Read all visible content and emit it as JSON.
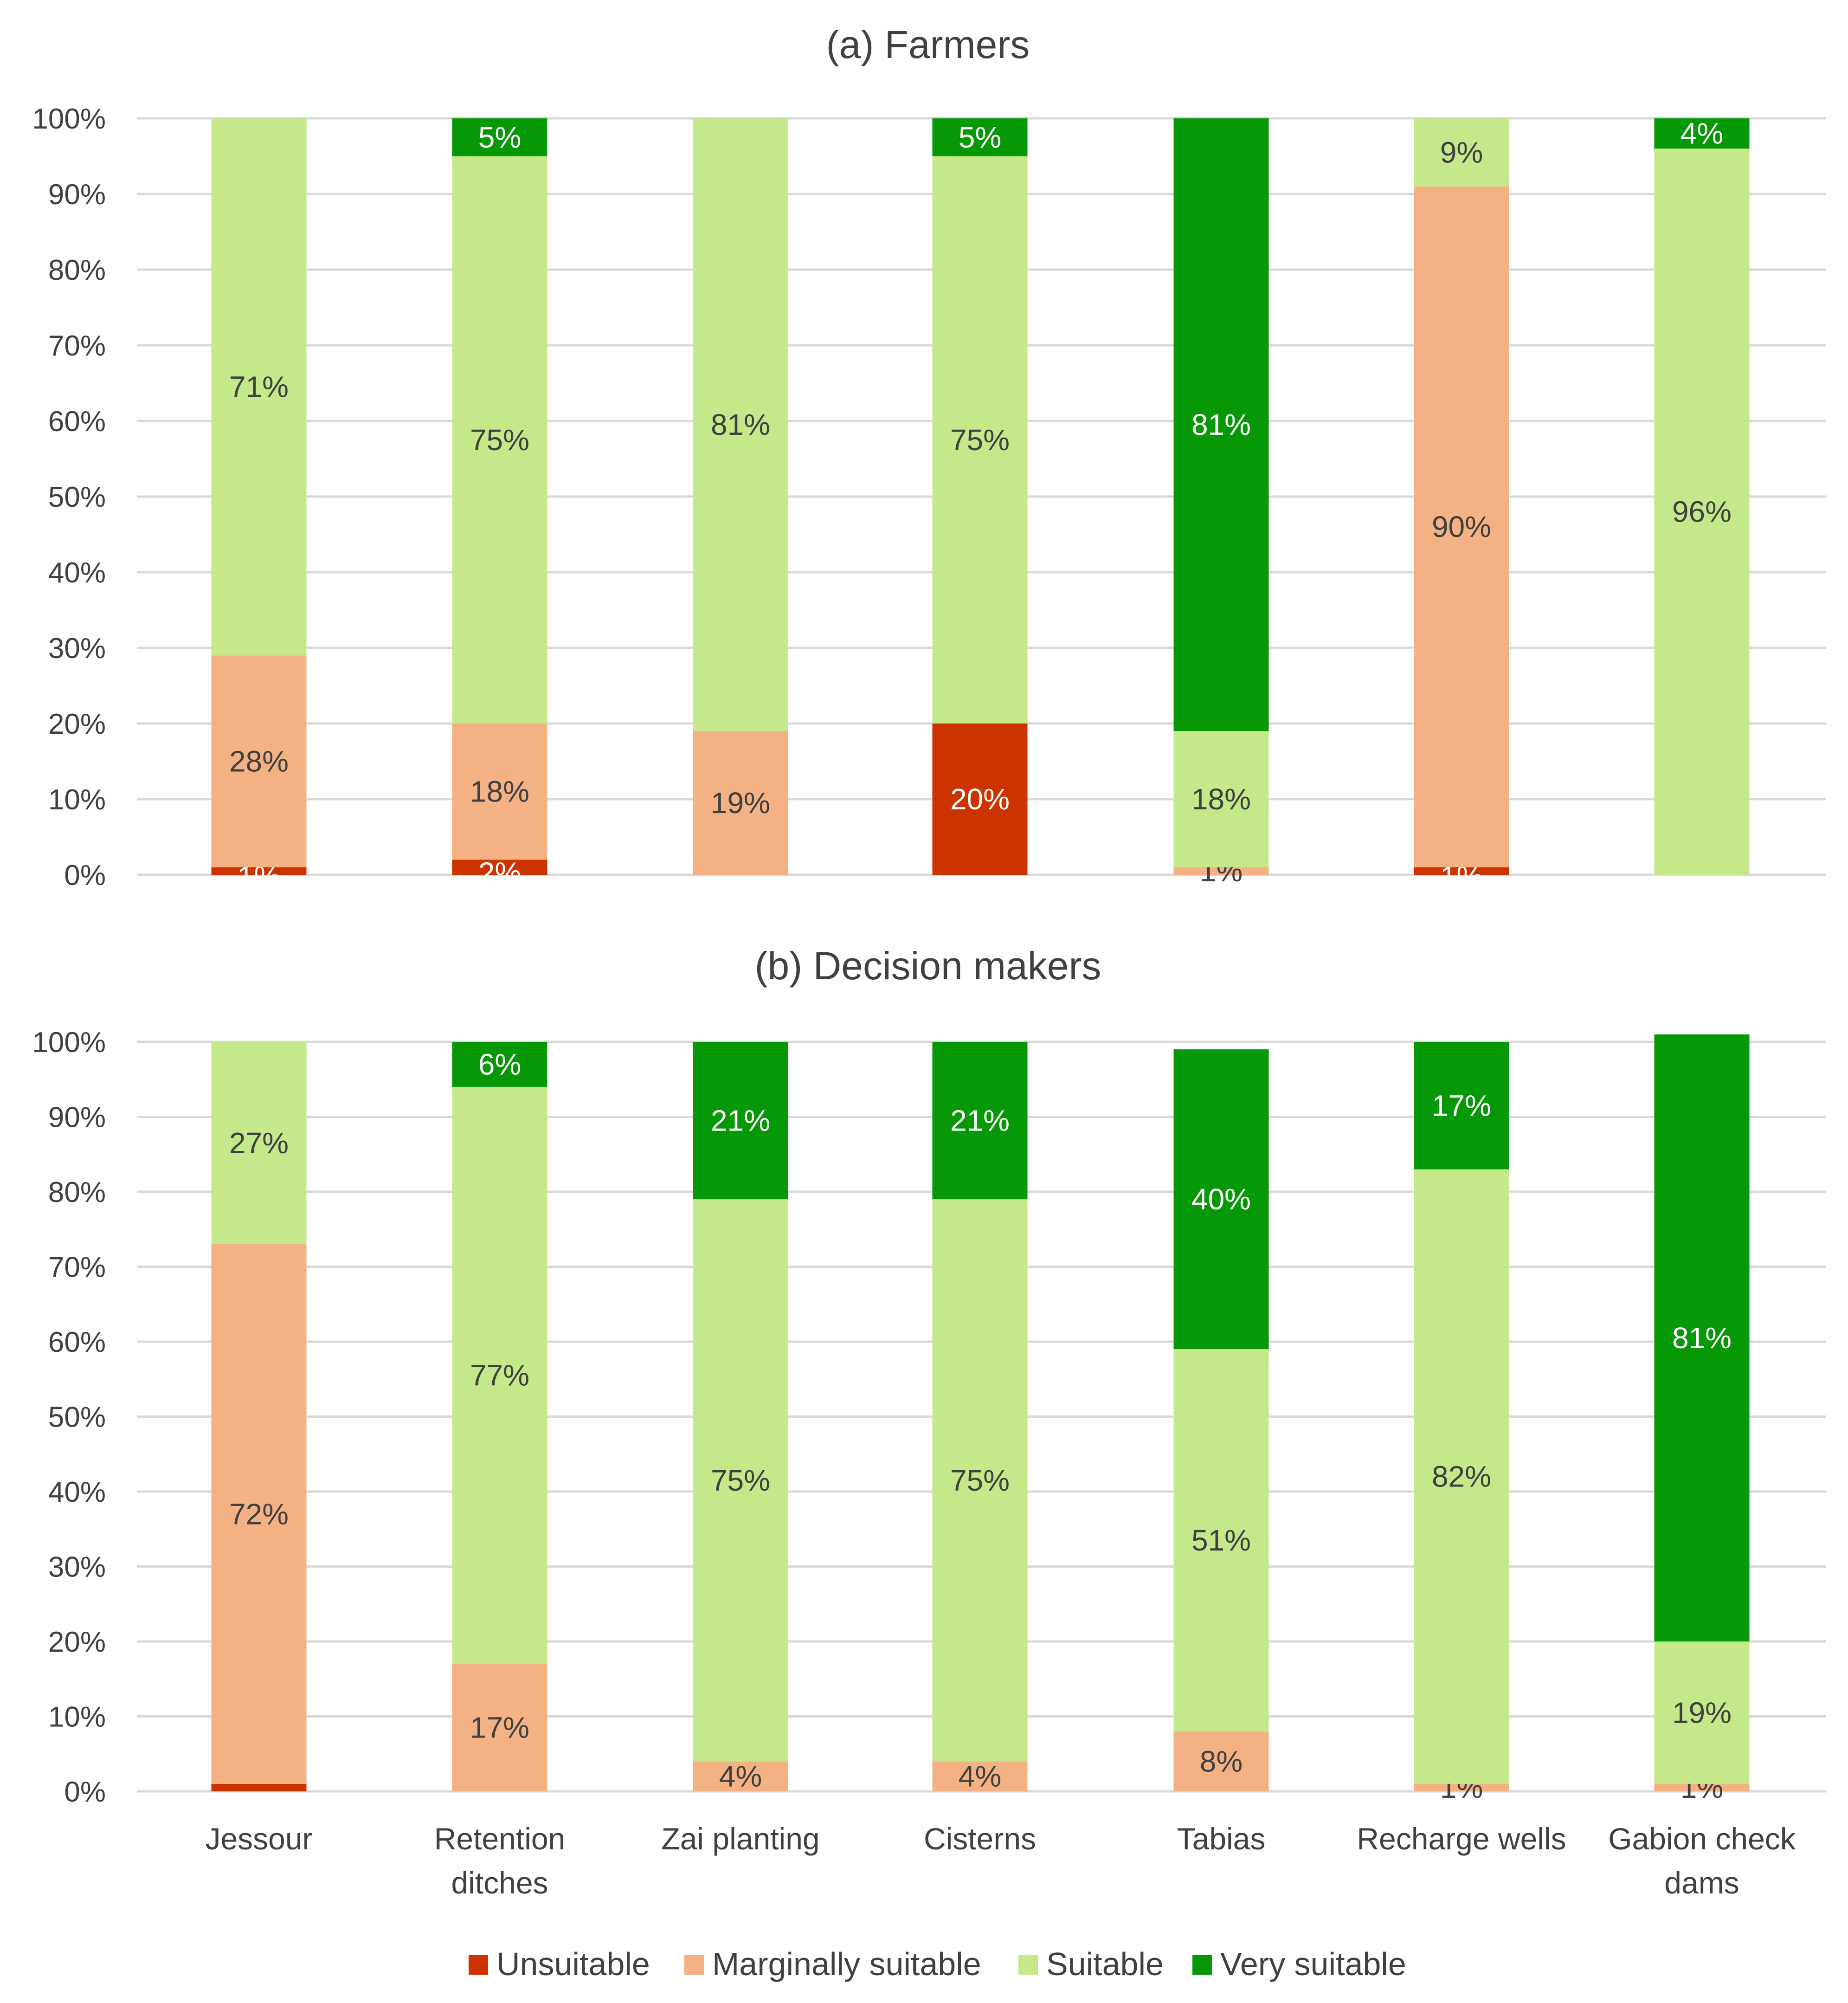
{
  "legend": [
    "Unsuitable",
    "Marginally suitable",
    "Suitable",
    "Very suitable"
  ],
  "colors": {
    "unsuitable": "#cc3300",
    "marginal": "#f4b183",
    "suitable": "#c5e88a",
    "very_suitable": "#069806"
  },
  "chart_data": [
    {
      "type": "bar",
      "stacked": true,
      "title": "(a) Farmers",
      "categories": [
        "Jessour",
        "Retention ditches",
        "Zai planting",
        "Cisterns",
        "Tabias",
        "Recharge wells",
        "Gabion check dams"
      ],
      "ylim": [
        0,
        100
      ],
      "yticks": [
        "0%",
        "10%",
        "20%",
        "30%",
        "40%",
        "50%",
        "60%",
        "70%",
        "80%",
        "90%",
        "100%"
      ],
      "grid": true,
      "series": [
        {
          "name": "Unsuitable",
          "values": [
            1,
            2,
            0,
            20,
            0,
            1,
            0
          ],
          "labels": [
            "1%",
            "2%",
            "",
            "20%",
            "",
            "1%",
            ""
          ]
        },
        {
          "name": "Marginally suitable",
          "values": [
            28,
            18,
            19,
            0,
            1,
            90,
            0
          ],
          "labels": [
            "28%",
            "18%",
            "19%",
            "",
            "1%",
            "90%",
            ""
          ]
        },
        {
          "name": "Suitable",
          "values": [
            71,
            75,
            81,
            75,
            18,
            9,
            96
          ],
          "labels": [
            "71%",
            "75%",
            "81%",
            "75%",
            "18%",
            "9%",
            "96%"
          ]
        },
        {
          "name": "Very suitable",
          "values": [
            0,
            5,
            0,
            5,
            81,
            0,
            4
          ],
          "labels": [
            "",
            "5%",
            "",
            "5%",
            "81%",
            "",
            "4%"
          ]
        }
      ]
    },
    {
      "type": "bar",
      "stacked": true,
      "title": "(b) Decision makers",
      "categories": [
        "Jessour",
        "Retention ditches",
        "Zai planting",
        "Cisterns",
        "Tabias",
        "Recharge wells",
        "Gabion check dams"
      ],
      "category_lines": [
        [
          "Jessour"
        ],
        [
          "Retention",
          "ditches"
        ],
        [
          "Zai planting"
        ],
        [
          "Cisterns"
        ],
        [
          "Tabias"
        ],
        [
          "Recharge wells"
        ],
        [
          "Gabion check",
          "dams"
        ]
      ],
      "ylim": [
        0,
        100
      ],
      "yticks": [
        "0%",
        "10%",
        "20%",
        "30%",
        "40%",
        "50%",
        "60%",
        "70%",
        "80%",
        "90%",
        "100%"
      ],
      "grid": true,
      "legend_position": "bottom",
      "series": [
        {
          "name": "Unsuitable",
          "values": [
            1,
            0,
            0,
            0,
            0,
            0,
            0
          ],
          "labels": [
            "",
            "",
            "",
            "",
            "",
            "",
            ""
          ]
        },
        {
          "name": "Marginally suitable",
          "values": [
            72,
            17,
            4,
            4,
            8,
            1,
            1
          ],
          "labels": [
            "72%",
            "17%",
            "4%",
            "4%",
            "8%",
            "1%",
            "1%"
          ]
        },
        {
          "name": "Suitable",
          "values": [
            27,
            77,
            75,
            75,
            51,
            82,
            19
          ],
          "labels": [
            "27%",
            "77%",
            "75%",
            "75%",
            "51%",
            "82%",
            "19%"
          ]
        },
        {
          "name": "Very suitable",
          "values": [
            0,
            6,
            21,
            21,
            40,
            17,
            81
          ],
          "labels": [
            "",
            "6%",
            "21%",
            "21%",
            "40%",
            "17%",
            "81%"
          ]
        }
      ]
    }
  ]
}
